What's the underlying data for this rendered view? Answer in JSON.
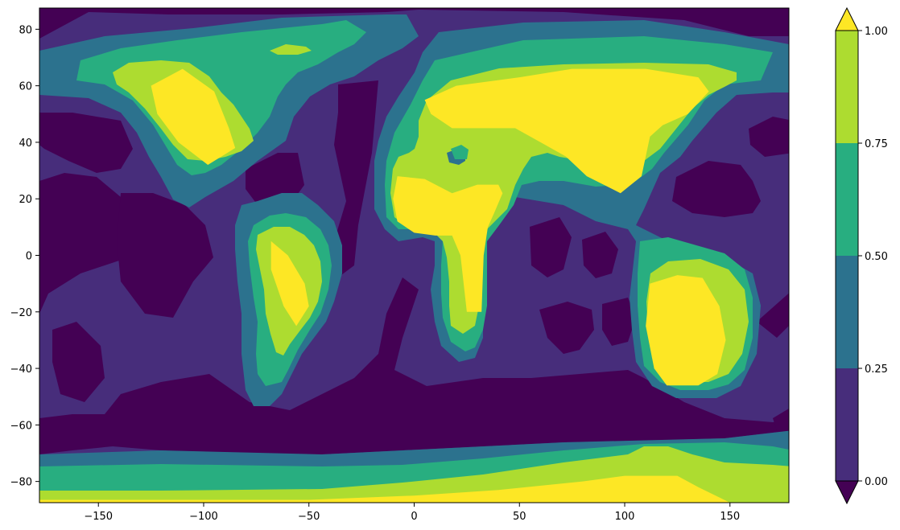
{
  "chart_data": {
    "type": "heatmap",
    "subtype": "filled-contour",
    "title": "",
    "xlabel": "",
    "ylabel": "",
    "xlim": [
      -178,
      178
    ],
    "ylim": [
      -87.5,
      87.5
    ],
    "x_ticks": [
      -150,
      -100,
      -50,
      0,
      50,
      100,
      150
    ],
    "y_ticks": [
      -80,
      -60,
      -40,
      -20,
      0,
      20,
      40,
      60,
      80
    ],
    "x_tick_labels": [
      "−150",
      "−100",
      "−50",
      "0",
      "50",
      "100",
      "150"
    ],
    "y_tick_labels": [
      "−80",
      "−60",
      "−40",
      "−20",
      "0",
      "20",
      "40",
      "60",
      "80"
    ],
    "grid": false,
    "colormap": "viridis",
    "contour_levels": [
      0.0,
      0.25,
      0.5,
      0.75,
      1.0
    ],
    "level_colors": {
      "under": "#440154",
      "0.00-0.25": "#472d7b",
      "0.25-0.50": "#2c728e",
      "0.50-0.75": "#28ae80",
      "0.75-1.00": "#addc30",
      "over": "#fde725"
    },
    "colorbar": {
      "placement": "right",
      "extend": "both",
      "tick_values": [
        0.0,
        0.25,
        0.5,
        0.75,
        1.0
      ],
      "tick_labels": [
        "0.00",
        "0.25",
        "0.50",
        "0.75",
        "1.00"
      ]
    },
    "regions": [
      {
        "level": 6,
        "points": [
          [
            -125,
            60
          ],
          [
            -110,
            66
          ],
          [
            -95,
            58
          ],
          [
            -88,
            45
          ],
          [
            -85,
            38
          ],
          [
            -98,
            32
          ],
          [
            -112,
            40
          ],
          [
            -122,
            50
          ]
        ]
      },
      {
        "level": 6,
        "points": [
          [
            -68,
            5
          ],
          [
            -60,
            0
          ],
          [
            -52,
            -10
          ],
          [
            -50,
            -18
          ],
          [
            -56,
            -25
          ],
          [
            -62,
            -18
          ],
          [
            -68,
            -5
          ]
        ]
      },
      {
        "level": 6,
        "points": [
          [
            -8,
            28
          ],
          [
            5,
            27
          ],
          [
            18,
            22
          ],
          [
            30,
            25
          ],
          [
            40,
            25
          ],
          [
            42,
            22
          ],
          [
            38,
            15
          ],
          [
            35,
            10
          ],
          [
            33,
            0
          ],
          [
            32,
            -20
          ],
          [
            25,
            -20
          ],
          [
            22,
            0
          ],
          [
            18,
            7
          ],
          [
            10,
            7
          ],
          [
            0,
            8
          ],
          [
            -8,
            12
          ],
          [
            -10,
            20
          ]
        ]
      },
      {
        "level": 6,
        "points": [
          [
            5,
            55
          ],
          [
            20,
            60
          ],
          [
            50,
            63
          ],
          [
            75,
            66
          ],
          [
            110,
            66
          ],
          [
            135,
            63
          ],
          [
            140,
            58
          ],
          [
            130,
            50
          ],
          [
            118,
            46
          ],
          [
            112,
            42
          ],
          [
            108,
            28
          ],
          [
            98,
            22
          ],
          [
            82,
            28
          ],
          [
            72,
            35
          ],
          [
            60,
            40
          ],
          [
            48,
            45
          ],
          [
            35,
            45
          ],
          [
            18,
            45
          ],
          [
            8,
            50
          ]
        ]
      },
      {
        "level": 6,
        "points": [
          [
            112,
            -10
          ],
          [
            125,
            -7
          ],
          [
            137,
            -8
          ],
          [
            145,
            -18
          ],
          [
            148,
            -30
          ],
          [
            144,
            -42
          ],
          [
            135,
            -46
          ],
          [
            120,
            -46
          ],
          [
            114,
            -40
          ],
          [
            110,
            -25
          ]
        ]
      },
      {
        "level": 6,
        "points": [
          [
            -178,
            -87.5
          ],
          [
            -178,
            -86.5
          ],
          [
            -50,
            -86.5
          ],
          [
            0,
            -85
          ],
          [
            40,
            -83
          ],
          [
            80,
            -80
          ],
          [
            100,
            -78
          ],
          [
            125,
            -78
          ],
          [
            135,
            -82
          ],
          [
            150,
            -87.5
          ]
        ]
      }
    ]
  }
}
